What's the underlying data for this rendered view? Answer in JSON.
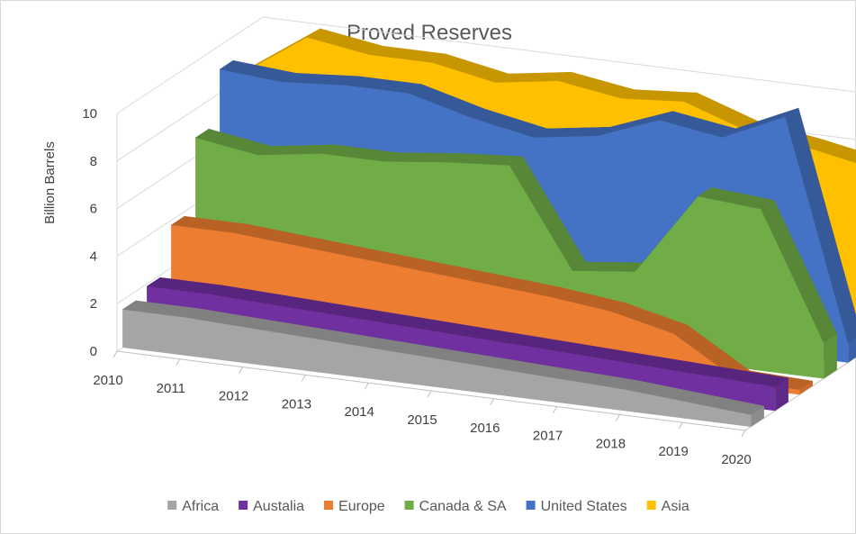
{
  "chart_data": {
    "type": "area",
    "style": "3d-area",
    "title": "Proved Reserves",
    "ylabel": "Billion Barrels",
    "xlabel": "",
    "ylim": [
      0,
      10
    ],
    "yticks": [
      0,
      2,
      4,
      6,
      8,
      10
    ],
    "categories": [
      "2010",
      "2011",
      "2012",
      "2013",
      "2014",
      "2015",
      "2016",
      "2017",
      "2018",
      "2019",
      "2020"
    ],
    "legend_position": "bottom",
    "series": [
      {
        "name": "Africa",
        "color": "#a5a5a5",
        "values": [
          1.6,
          1.6,
          1.5,
          1.4,
          1.3,
          1.2,
          1.1,
          1.0,
          0.9,
          0.7,
          0.5
        ]
      },
      {
        "name": "Austalia",
        "color": "#7030a0",
        "values": [
          1.9,
          1.9,
          1.8,
          1.7,
          1.6,
          1.5,
          1.4,
          1.3,
          1.2,
          1.1,
          1.0
        ]
      },
      {
        "name": "Europe",
        "color": "#ed7d31",
        "values": [
          3.8,
          3.8,
          3.6,
          3.4,
          3.2,
          3.0,
          2.8,
          2.5,
          1.9,
          0.3,
          0.2
        ]
      },
      {
        "name": "Canada & SA",
        "color": "#70ad47",
        "values": [
          6.8,
          6.4,
          6.8,
          6.8,
          7.1,
          7.3,
          3.2,
          3.5,
          7.0,
          6.8,
          1.5
        ]
      },
      {
        "name": "United States",
        "color": "#4472c4",
        "values": [
          9.0,
          8.8,
          9.0,
          9.0,
          8.3,
          7.8,
          8.2,
          9.2,
          8.8,
          10.0,
          0.8
        ]
      },
      {
        "name": "Asia",
        "color": "#ffc000",
        "values": [
          8.2,
          10.0,
          9.6,
          9.6,
          9.1,
          9.5,
          9.1,
          9.3,
          8.4,
          8.0,
          7.5
        ]
      }
    ]
  }
}
